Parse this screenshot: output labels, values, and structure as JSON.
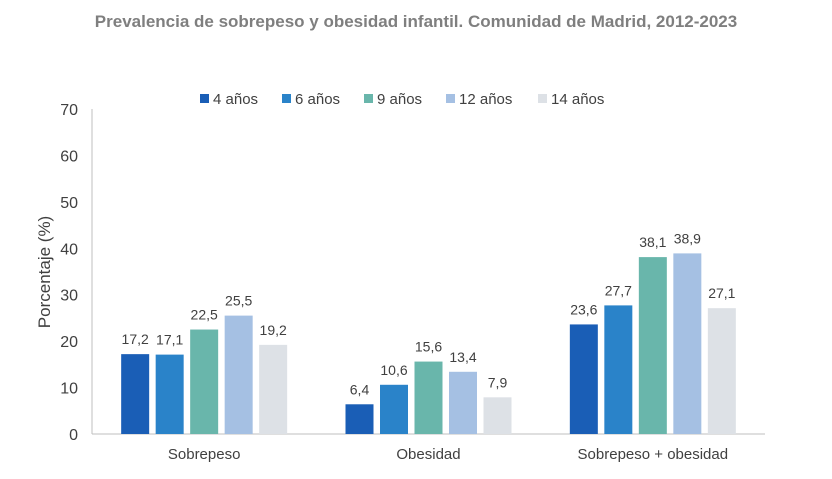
{
  "chart_data": {
    "type": "bar",
    "title": "Prevalencia de sobrepeso y obesidad infantil. Comunidad de Madrid, 2012-2023",
    "xlabel": "",
    "ylabel": "Porcentaje (%)",
    "ylim": [
      0,
      70
    ],
    "yticks": [
      0,
      10,
      20,
      30,
      40,
      50,
      60,
      70
    ],
    "grid": false,
    "legend": "top",
    "categories": [
      "Sobrepeso",
      "Obesidad",
      "Sobrepeso + obesidad"
    ],
    "series": [
      {
        "name": "4 años",
        "color": "#1a5eb6",
        "values": [
          17.2,
          6.4,
          23.6
        ],
        "labels": [
          "17,2",
          "6,4",
          "23,6"
        ]
      },
      {
        "name": "6 años",
        "color": "#2a83c9",
        "values": [
          17.1,
          10.6,
          27.7
        ],
        "labels": [
          "17,1",
          "10,6",
          "27,7"
        ]
      },
      {
        "name": "9 años",
        "color": "#69b6ab",
        "values": [
          22.5,
          15.6,
          38.1
        ],
        "labels": [
          "22,5",
          "15,6",
          "38,1"
        ]
      },
      {
        "name": "12 años",
        "color": "#a5c0e3",
        "values": [
          25.5,
          13.4,
          38.9
        ],
        "labels": [
          "25,5",
          "13,4",
          "38,9"
        ]
      },
      {
        "name": "14 años",
        "color": "#dde1e6",
        "values": [
          19.2,
          7.9,
          27.1
        ],
        "labels": [
          "19,2",
          "7,9",
          "27,1"
        ]
      }
    ]
  }
}
